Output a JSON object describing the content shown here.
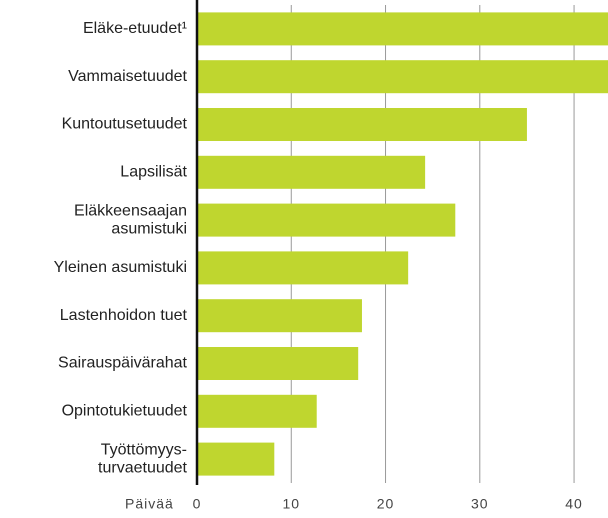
{
  "chart_data": {
    "type": "barh",
    "categories": [
      [
        "Eläke-etuudet¹"
      ],
      [
        "Vammaisetuudet"
      ],
      [
        "Kuntoutusetuudet"
      ],
      [
        "Lapsilisät"
      ],
      [
        "Eläkkeensaajan",
        "asumistuki"
      ],
      [
        "Yleinen asumistuki"
      ],
      [
        "Lastenhoidon tuet"
      ],
      [
        "Sairauspäivärahat"
      ],
      [
        "Opintotukietuudet"
      ],
      [
        "Työttömyys-",
        "turvaetuudet"
      ]
    ],
    "values": [
      46,
      46,
      35.0,
      24.2,
      27.4,
      22.4,
      17.5,
      17.1,
      12.7,
      8.2
    ],
    "color": "#bfd62f",
    "xlabel": "Päivää",
    "xlim": [
      0,
      43.6
    ],
    "xticks": [
      0,
      10,
      20,
      30,
      40
    ],
    "grid": true
  }
}
